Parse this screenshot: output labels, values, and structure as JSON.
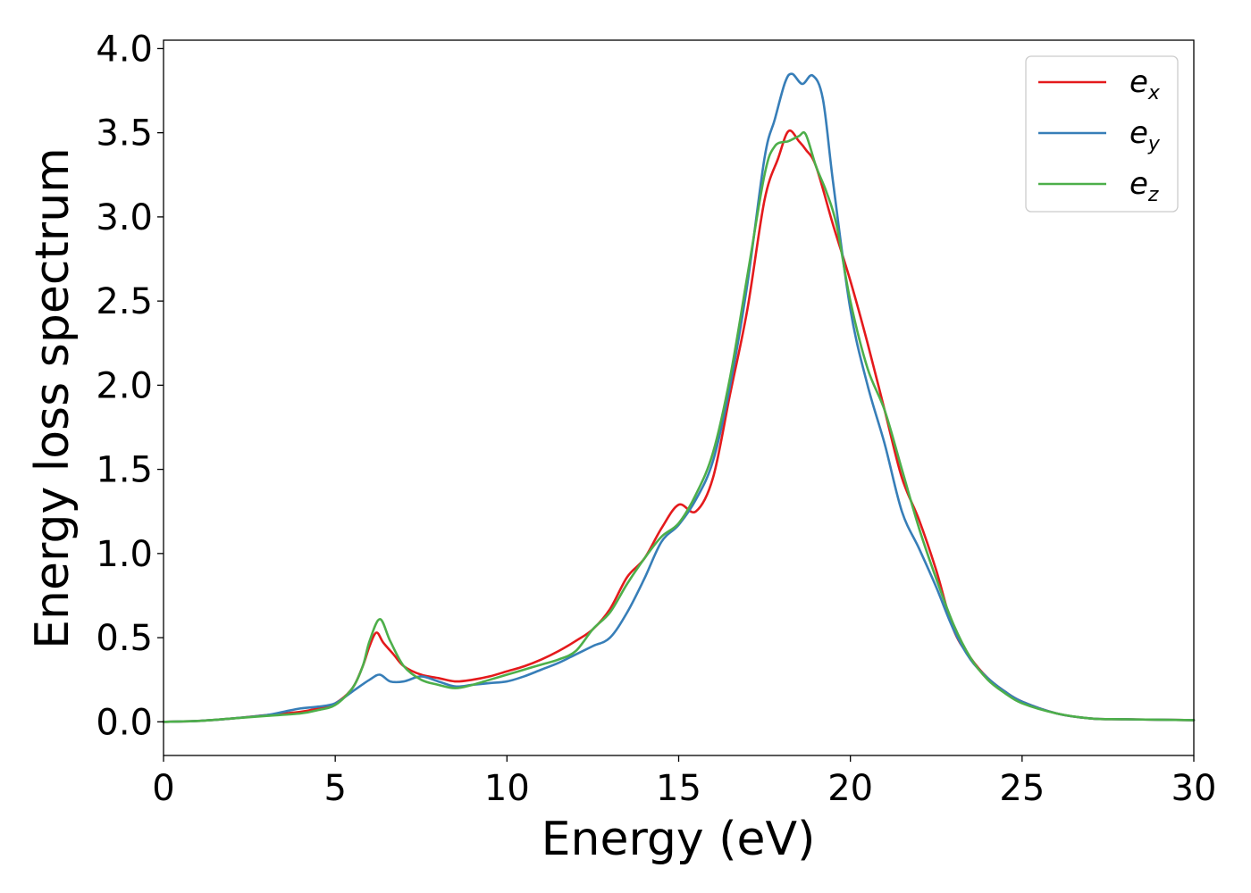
{
  "chart_data": {
    "type": "line",
    "title": "",
    "xlabel": "Energy (eV)",
    "ylabel": "Energy loss spectrum",
    "xlim": [
      0,
      30
    ],
    "ylim": [
      -0.2,
      4.05
    ],
    "xticks": [
      0,
      5,
      10,
      15,
      20,
      25,
      30
    ],
    "xtick_labels": [
      "0",
      "5",
      "10",
      "15",
      "20",
      "25",
      "30"
    ],
    "yticks": [
      0.0,
      0.5,
      1.0,
      1.5,
      2.0,
      2.5,
      3.0,
      3.5,
      4.0
    ],
    "ytick_labels": [
      "0.0",
      "0.5",
      "1.0",
      "1.5",
      "2.0",
      "2.5",
      "3.0",
      "3.5",
      "4.0"
    ],
    "grid": false,
    "legend_position": "top-right",
    "series": [
      {
        "name": "e_x",
        "label_main": "e",
        "label_sub": "x",
        "color": "#e41a1c",
        "points": [
          [
            0,
            0
          ],
          [
            1,
            0.005
          ],
          [
            2,
            0.02
          ],
          [
            3,
            0.04
          ],
          [
            4,
            0.06
          ],
          [
            4.5,
            0.08
          ],
          [
            5,
            0.11
          ],
          [
            5.5,
            0.2
          ],
          [
            5.8,
            0.33
          ],
          [
            6.0,
            0.45
          ],
          [
            6.2,
            0.53
          ],
          [
            6.4,
            0.47
          ],
          [
            6.7,
            0.4
          ],
          [
            7.0,
            0.33
          ],
          [
            7.5,
            0.28
          ],
          [
            8.0,
            0.26
          ],
          [
            8.5,
            0.24
          ],
          [
            9,
            0.25
          ],
          [
            9.5,
            0.27
          ],
          [
            10,
            0.3
          ],
          [
            10.5,
            0.33
          ],
          [
            11,
            0.37
          ],
          [
            11.5,
            0.42
          ],
          [
            12,
            0.48
          ],
          [
            12.5,
            0.55
          ],
          [
            13,
            0.67
          ],
          [
            13.5,
            0.86
          ],
          [
            14,
            0.97
          ],
          [
            14.5,
            1.15
          ],
          [
            15,
            1.29
          ],
          [
            15.5,
            1.25
          ],
          [
            16,
            1.45
          ],
          [
            16.5,
            1.95
          ],
          [
            17,
            2.45
          ],
          [
            17.5,
            3.1
          ],
          [
            17.9,
            3.35
          ],
          [
            18.2,
            3.51
          ],
          [
            18.5,
            3.45
          ],
          [
            18.7,
            3.4
          ],
          [
            19,
            3.3
          ],
          [
            19.5,
            2.95
          ],
          [
            20,
            2.62
          ],
          [
            20.5,
            2.25
          ],
          [
            21,
            1.85
          ],
          [
            21.5,
            1.45
          ],
          [
            22,
            1.2
          ],
          [
            22.5,
            0.9
          ],
          [
            23,
            0.55
          ],
          [
            23.5,
            0.38
          ],
          [
            24,
            0.26
          ],
          [
            24.5,
            0.18
          ],
          [
            25,
            0.12
          ],
          [
            26,
            0.05
          ],
          [
            27,
            0.02
          ],
          [
            28,
            0.015
          ],
          [
            30,
            0.01
          ]
        ]
      },
      {
        "name": "e_y",
        "label_main": "e",
        "label_sub": "y",
        "color": "#377eb8",
        "points": [
          [
            0,
            0
          ],
          [
            1,
            0.005
          ],
          [
            2,
            0.02
          ],
          [
            3,
            0.04
          ],
          [
            3.5,
            0.06
          ],
          [
            4,
            0.08
          ],
          [
            4.5,
            0.09
          ],
          [
            5,
            0.11
          ],
          [
            5.5,
            0.18
          ],
          [
            6.0,
            0.25
          ],
          [
            6.3,
            0.28
          ],
          [
            6.6,
            0.24
          ],
          [
            7.0,
            0.24
          ],
          [
            7.5,
            0.27
          ],
          [
            8.0,
            0.24
          ],
          [
            8.5,
            0.21
          ],
          [
            9,
            0.22
          ],
          [
            9.5,
            0.23
          ],
          [
            10,
            0.24
          ],
          [
            10.5,
            0.27
          ],
          [
            11,
            0.31
          ],
          [
            11.5,
            0.35
          ],
          [
            12,
            0.4
          ],
          [
            12.5,
            0.45
          ],
          [
            13,
            0.5
          ],
          [
            13.5,
            0.65
          ],
          [
            14,
            0.85
          ],
          [
            14.5,
            1.07
          ],
          [
            15,
            1.17
          ],
          [
            15.5,
            1.32
          ],
          [
            16,
            1.55
          ],
          [
            16.5,
            2.0
          ],
          [
            17,
            2.6
          ],
          [
            17.5,
            3.35
          ],
          [
            17.8,
            3.58
          ],
          [
            18.1,
            3.8
          ],
          [
            18.3,
            3.85
          ],
          [
            18.6,
            3.79
          ],
          [
            18.9,
            3.84
          ],
          [
            19.2,
            3.7
          ],
          [
            19.5,
            3.2
          ],
          [
            20,
            2.45
          ],
          [
            20.5,
            2.0
          ],
          [
            21,
            1.65
          ],
          [
            21.5,
            1.25
          ],
          [
            22,
            1.03
          ],
          [
            22.5,
            0.8
          ],
          [
            23,
            0.55
          ],
          [
            23.5,
            0.37
          ],
          [
            24,
            0.26
          ],
          [
            24.5,
            0.18
          ],
          [
            25,
            0.12
          ],
          [
            26,
            0.05
          ],
          [
            27,
            0.02
          ],
          [
            28,
            0.015
          ],
          [
            30,
            0.01
          ]
        ]
      },
      {
        "name": "e_z",
        "label_main": "e",
        "label_sub": "z",
        "color": "#4daf4a",
        "points": [
          [
            0,
            0
          ],
          [
            1,
            0.005
          ],
          [
            2,
            0.02
          ],
          [
            3,
            0.035
          ],
          [
            4,
            0.05
          ],
          [
            4.5,
            0.07
          ],
          [
            5,
            0.1
          ],
          [
            5.5,
            0.2
          ],
          [
            5.8,
            0.33
          ],
          [
            6.0,
            0.48
          ],
          [
            6.3,
            0.61
          ],
          [
            6.6,
            0.48
          ],
          [
            7.0,
            0.33
          ],
          [
            7.5,
            0.25
          ],
          [
            8.0,
            0.22
          ],
          [
            8.5,
            0.2
          ],
          [
            9,
            0.22
          ],
          [
            9.5,
            0.25
          ],
          [
            10,
            0.28
          ],
          [
            10.5,
            0.31
          ],
          [
            11,
            0.34
          ],
          [
            11.5,
            0.37
          ],
          [
            12,
            0.42
          ],
          [
            12.5,
            0.55
          ],
          [
            13,
            0.65
          ],
          [
            13.5,
            0.82
          ],
          [
            14,
            0.97
          ],
          [
            14.5,
            1.1
          ],
          [
            15,
            1.18
          ],
          [
            15.5,
            1.35
          ],
          [
            16,
            1.6
          ],
          [
            16.5,
            2.05
          ],
          [
            17,
            2.65
          ],
          [
            17.5,
            3.25
          ],
          [
            17.8,
            3.42
          ],
          [
            18.2,
            3.45
          ],
          [
            18.5,
            3.48
          ],
          [
            18.7,
            3.49
          ],
          [
            19,
            3.3
          ],
          [
            19.3,
            3.15
          ],
          [
            19.6,
            2.95
          ],
          [
            20,
            2.5
          ],
          [
            20.5,
            2.1
          ],
          [
            21,
            1.85
          ],
          [
            21.5,
            1.5
          ],
          [
            22,
            1.15
          ],
          [
            22.5,
            0.85
          ],
          [
            23,
            0.58
          ],
          [
            23.5,
            0.38
          ],
          [
            24,
            0.25
          ],
          [
            24.5,
            0.17
          ],
          [
            25,
            0.11
          ],
          [
            26,
            0.05
          ],
          [
            27,
            0.02
          ],
          [
            28,
            0.015
          ],
          [
            30,
            0.01
          ]
        ]
      }
    ]
  }
}
